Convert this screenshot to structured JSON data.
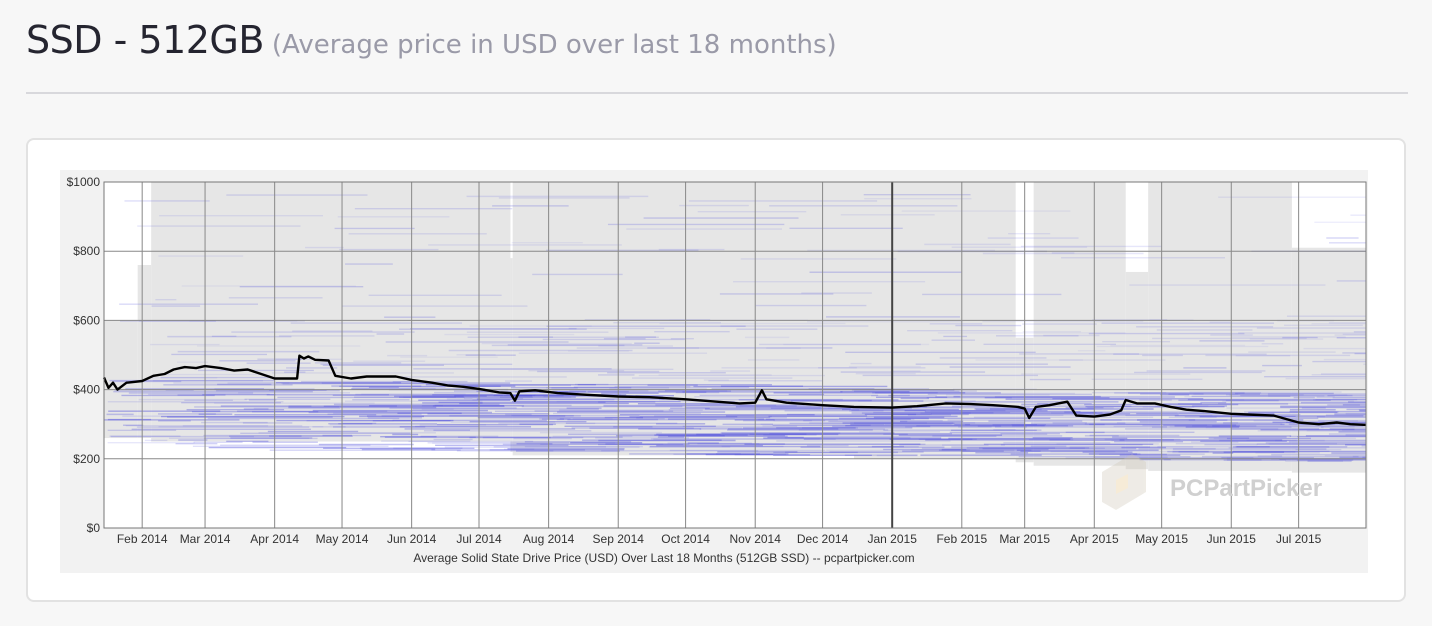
{
  "header": {
    "title": "SSD - 512GB",
    "subtitle": "(Average price in USD over last 18 months)"
  },
  "chart_data": {
    "type": "line",
    "caption": "Average Solid State Drive Price (USD) Over Last 18 Months (512GB SSD) -- pcpartpicker.com",
    "watermark": "PCPartPicker",
    "y_ticks": [
      {
        "value": 0,
        "label": "$0"
      },
      {
        "value": 200,
        "label": "$200"
      },
      {
        "value": 400,
        "label": "$400"
      },
      {
        "value": 600,
        "label": "$600"
      },
      {
        "value": 800,
        "label": "$800"
      },
      {
        "value": 1000,
        "label": "$1000"
      }
    ],
    "ylim": [
      0,
      1000
    ],
    "x_range": [
      "2014-01-15",
      "2015-07-31"
    ],
    "x_ticks": [
      {
        "date": "2014-02-01",
        "label": "Feb 2014"
      },
      {
        "date": "2014-03-01",
        "label": "Mar 2014"
      },
      {
        "date": "2014-04-01",
        "label": "Apr 2014"
      },
      {
        "date": "2014-05-01",
        "label": "May 2014"
      },
      {
        "date": "2014-06-01",
        "label": "Jun 2014"
      },
      {
        "date": "2014-07-01",
        "label": "Jul 2014"
      },
      {
        "date": "2014-08-01",
        "label": "Aug 2014"
      },
      {
        "date": "2014-09-01",
        "label": "Sep 2014"
      },
      {
        "date": "2014-10-01",
        "label": "Oct 2014"
      },
      {
        "date": "2014-11-01",
        "label": "Nov 2014"
      },
      {
        "date": "2014-12-01",
        "label": "Dec 2014"
      },
      {
        "date": "2015-01-01",
        "label": "Jan 2015"
      },
      {
        "date": "2015-02-01",
        "label": "Feb 2015"
      },
      {
        "date": "2015-03-01",
        "label": "Mar 2015"
      },
      {
        "date": "2015-04-01",
        "label": "Apr 2015"
      },
      {
        "date": "2015-05-01",
        "label": "May 2015"
      },
      {
        "date": "2015-06-01",
        "label": "Jun 2015"
      },
      {
        "date": "2015-07-01",
        "label": "Jul 2015"
      }
    ],
    "colors": {
      "average_line": "#000000",
      "price_range_band": "#e6e6e6",
      "individual_prices": "#5555dd",
      "grid": "#888888",
      "plot_background": "#ffffff",
      "chart_background": "#f2f2f2"
    },
    "price_range_band": [
      {
        "from": "2014-01-15",
        "to": "2014-01-30",
        "low": 260,
        "high": 600
      },
      {
        "from": "2014-01-30",
        "to": "2014-02-05",
        "low": 260,
        "high": 760
      },
      {
        "from": "2014-02-05",
        "to": "2014-07-15",
        "low": 250,
        "high": 1000
      },
      {
        "from": "2014-07-15",
        "to": "2014-07-16",
        "low": 220,
        "high": 780
      },
      {
        "from": "2014-07-16",
        "to": "2014-12-15",
        "low": 210,
        "high": 1000
      },
      {
        "from": "2014-12-15",
        "to": "2015-02-25",
        "low": 200,
        "high": 1000
      },
      {
        "from": "2015-02-25",
        "to": "2015-03-05",
        "low": 190,
        "high": 550
      },
      {
        "from": "2015-03-05",
        "to": "2015-04-15",
        "low": 180,
        "high": 1000
      },
      {
        "from": "2015-04-15",
        "to": "2015-04-25",
        "low": 170,
        "high": 740
      },
      {
        "from": "2015-04-25",
        "to": "2015-06-28",
        "low": 165,
        "high": 1000
      },
      {
        "from": "2015-06-28",
        "to": "2015-07-31",
        "low": 160,
        "high": 810
      }
    ],
    "series": [
      {
        "data": [
          [
            "2014-01-15",
            435
          ],
          [
            "2014-01-17",
            405
          ],
          [
            "2014-01-19",
            420
          ],
          [
            "2014-01-21",
            400
          ],
          [
            "2014-01-25",
            420
          ],
          [
            "2014-02-01",
            425
          ],
          [
            "2014-02-06",
            440
          ],
          [
            "2014-02-11",
            445
          ],
          [
            "2014-02-15",
            458
          ],
          [
            "2014-02-20",
            465
          ],
          [
            "2014-02-25",
            462
          ],
          [
            "2014-03-01",
            468
          ],
          [
            "2014-03-08",
            462
          ],
          [
            "2014-03-14",
            455
          ],
          [
            "2014-03-20",
            458
          ],
          [
            "2014-03-26",
            445
          ],
          [
            "2014-04-01",
            432
          ],
          [
            "2014-04-08",
            432
          ],
          [
            "2014-04-11",
            432
          ],
          [
            "2014-04-12",
            498
          ],
          [
            "2014-04-14",
            490
          ],
          [
            "2014-04-16",
            496
          ],
          [
            "2014-04-19",
            486
          ],
          [
            "2014-04-25",
            484
          ],
          [
            "2014-04-28",
            440
          ],
          [
            "2014-05-05",
            432
          ],
          [
            "2014-05-12",
            438
          ],
          [
            "2014-05-25",
            438
          ],
          [
            "2014-06-01",
            428
          ],
          [
            "2014-06-10",
            420
          ],
          [
            "2014-06-17",
            412
          ],
          [
            "2014-06-24",
            408
          ],
          [
            "2014-07-01",
            402
          ],
          [
            "2014-07-10",
            392
          ],
          [
            "2014-07-15",
            390
          ],
          [
            "2014-07-17",
            368
          ],
          [
            "2014-07-19",
            395
          ],
          [
            "2014-07-26",
            398
          ],
          [
            "2014-08-05",
            390
          ],
          [
            "2014-08-18",
            385
          ],
          [
            "2014-09-01",
            380
          ],
          [
            "2014-09-15",
            378
          ],
          [
            "2014-10-01",
            372
          ],
          [
            "2014-10-15",
            365
          ],
          [
            "2014-10-25",
            360
          ],
          [
            "2014-11-01",
            362
          ],
          [
            "2014-11-04",
            398
          ],
          [
            "2014-11-06",
            372
          ],
          [
            "2014-11-15",
            362
          ],
          [
            "2014-12-01",
            355
          ],
          [
            "2014-12-15",
            350
          ],
          [
            "2015-01-01",
            348
          ],
          [
            "2015-01-12",
            352
          ],
          [
            "2015-01-25",
            360
          ],
          [
            "2015-02-05",
            358
          ],
          [
            "2015-02-15",
            355
          ],
          [
            "2015-02-26",
            350
          ],
          [
            "2015-03-01",
            345
          ],
          [
            "2015-03-03",
            318
          ],
          [
            "2015-03-06",
            350
          ],
          [
            "2015-03-12",
            355
          ],
          [
            "2015-03-20",
            365
          ],
          [
            "2015-03-24",
            325
          ],
          [
            "2015-04-01",
            322
          ],
          [
            "2015-04-08",
            328
          ],
          [
            "2015-04-13",
            340
          ],
          [
            "2015-04-15",
            370
          ],
          [
            "2015-04-20",
            360
          ],
          [
            "2015-04-28",
            360
          ],
          [
            "2015-05-05",
            350
          ],
          [
            "2015-05-12",
            342
          ],
          [
            "2015-05-20",
            338
          ],
          [
            "2015-06-01",
            330
          ],
          [
            "2015-06-08",
            328
          ],
          [
            "2015-06-20",
            325
          ],
          [
            "2015-07-01",
            305
          ],
          [
            "2015-07-10",
            300
          ],
          [
            "2015-07-18",
            305
          ],
          [
            "2015-07-24",
            300
          ],
          [
            "2015-07-31",
            298
          ]
        ]
      }
    ]
  }
}
